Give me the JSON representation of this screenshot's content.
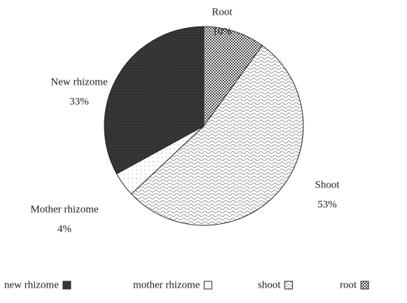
{
  "chart_data": {
    "type": "pie",
    "categories": [
      "Root",
      "Shoot",
      "Mother rhizome",
      "New rhizome"
    ],
    "values": [
      10,
      53,
      4,
      33
    ],
    "value_labels": [
      "10%",
      "53%",
      "4%",
      "33%"
    ],
    "colors": [
      "#555555",
      "#f4f4f4",
      "#ffffff",
      "#3a3a3a"
    ],
    "legend": [
      "new rhizome",
      "mother rhizome",
      "shoot",
      "root"
    ]
  }
}
